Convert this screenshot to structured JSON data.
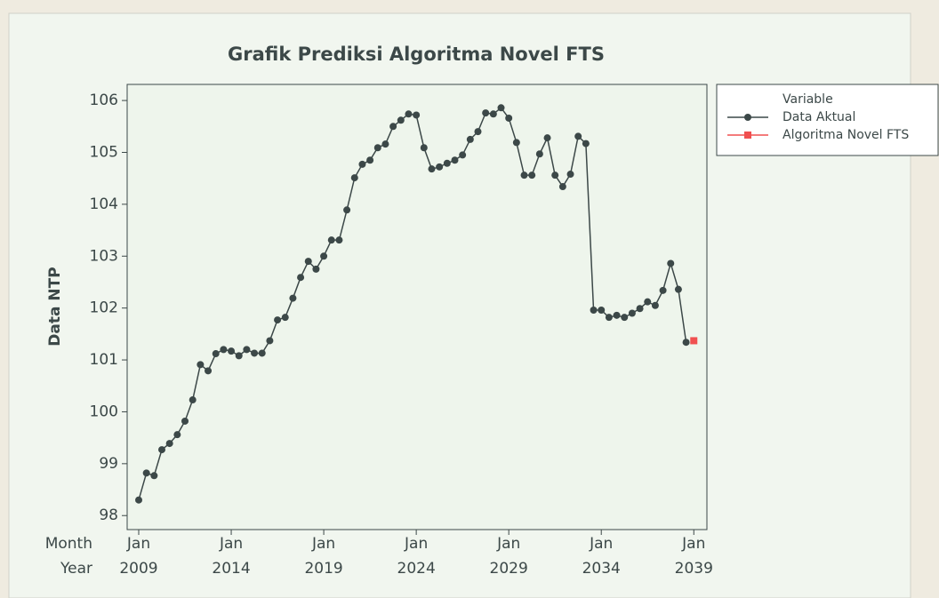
{
  "chart_data": {
    "type": "line",
    "title": "Grafik Prediksi Algoritma Novel FTS",
    "y_label": "Data NTP",
    "x_row_labels": [
      "Month",
      "Year"
    ],
    "xlim": [
      -1.5,
      73.7
    ],
    "xticks": [
      {
        "value": 0,
        "month": "Jan",
        "year": "2009"
      },
      {
        "value": 12,
        "month": "Jan",
        "year": "2014"
      },
      {
        "value": 24,
        "month": "Jan",
        "year": "2019"
      },
      {
        "value": 36,
        "month": "Jan",
        "year": "2024"
      },
      {
        "value": 48,
        "month": "Jan",
        "year": "2029"
      },
      {
        "value": 60,
        "month": "Jan",
        "year": "2034"
      },
      {
        "value": 72,
        "month": "Jan",
        "year": "2039"
      }
    ],
    "ylim": [
      97.73,
      106.31
    ],
    "yticks": [
      98,
      99,
      100,
      101,
      102,
      103,
      104,
      105,
      106
    ],
    "legend_title": "Variable",
    "series": [
      {
        "name": "Data Aktual",
        "color": "#3c4848",
        "marker": "circle",
        "values": [
          98.3,
          98.82,
          98.77,
          99.27,
          99.39,
          99.56,
          99.82,
          100.23,
          100.91,
          100.79,
          101.12,
          101.2,
          101.17,
          101.08,
          101.2,
          101.13,
          101.13,
          101.37,
          101.77,
          101.82,
          102.19,
          102.59,
          102.9,
          102.75,
          103.0,
          103.31,
          103.31,
          103.89,
          104.51,
          104.77,
          104.85,
          105.09,
          105.16,
          105.5,
          105.62,
          105.74,
          105.72,
          105.09,
          104.68,
          104.72,
          104.79,
          104.85,
          104.95,
          105.25,
          105.4,
          105.76,
          105.74,
          105.86,
          105.66,
          105.19,
          104.56,
          104.56,
          104.97,
          105.28,
          104.56,
          104.34,
          104.58,
          105.31,
          105.17,
          101.96,
          101.96,
          101.82,
          101.86,
          101.82,
          101.9,
          101.99,
          102.12,
          102.05,
          102.34,
          102.86,
          102.36,
          101.34,
          null
        ]
      },
      {
        "name": "Algoritma Novel FTS",
        "color": "#f05050",
        "marker": "square",
        "values": [
          null,
          null,
          null,
          null,
          null,
          null,
          null,
          null,
          null,
          null,
          null,
          null,
          null,
          null,
          null,
          null,
          null,
          null,
          null,
          null,
          null,
          null,
          null,
          null,
          null,
          null,
          null,
          null,
          null,
          null,
          null,
          null,
          null,
          null,
          null,
          null,
          null,
          null,
          null,
          null,
          null,
          null,
          null,
          null,
          null,
          null,
          null,
          null,
          null,
          null,
          null,
          null,
          null,
          null,
          null,
          null,
          null,
          null,
          null,
          null,
          null,
          null,
          null,
          null,
          null,
          null,
          null,
          null,
          null,
          null,
          null,
          null,
          101.37
        ]
      }
    ]
  }
}
